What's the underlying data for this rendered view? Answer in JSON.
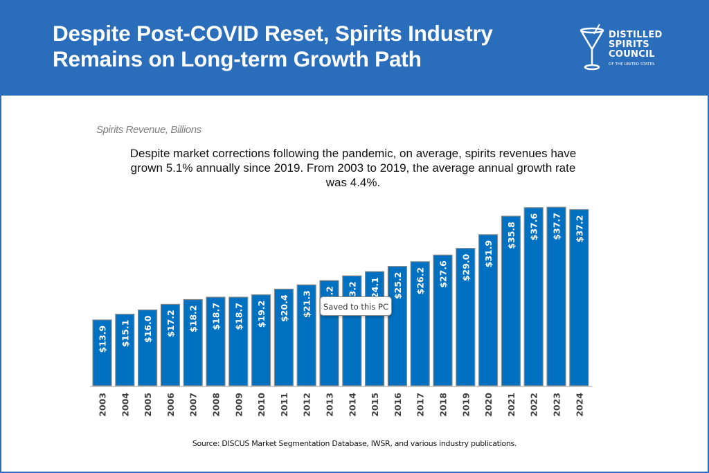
{
  "header": {
    "title_line1": "Despite Post-COVID Reset, Spirits Industry",
    "title_line2": "Remains on Long-term Growth Path",
    "logo": {
      "icon": "martini-glass-icon",
      "line1": "DISTILLED",
      "line2": "SPIRITS",
      "line3": "COUNCIL",
      "line4": "OF THE UNITED STATES"
    }
  },
  "colors": {
    "brand_blue": "#2a6ebb",
    "bar_fill": "#0070c0",
    "bar_border": "#8c8c8c"
  },
  "tooltip": {
    "text": "Saved to this PC"
  },
  "chart_data": {
    "type": "bar",
    "title": "Spirits Revenue, Billions",
    "annotation": "Despite market corrections following the pandemic, on average, spirits revenues have grown 5.1% annually since 2019. From 2003 to 2019, the average annual growth rate was 4.4%.",
    "xlabel": "",
    "ylabel": "",
    "ylim": [
      0,
      40
    ],
    "grid": false,
    "legend": "none",
    "value_prefix": "$",
    "categories": [
      "2003",
      "2004",
      "2005",
      "2006",
      "2007",
      "2008",
      "2009",
      "2010",
      "2011",
      "2012",
      "2013",
      "2014",
      "2015",
      "2016",
      "2017",
      "2018",
      "2019",
      "2020",
      "2021",
      "2022",
      "2023",
      "2024"
    ],
    "values": [
      13.9,
      15.1,
      16.0,
      17.2,
      18.2,
      18.7,
      18.7,
      19.2,
      20.4,
      21.3,
      22.2,
      23.2,
      24.1,
      25.2,
      26.2,
      27.6,
      29.0,
      31.9,
      35.8,
      37.6,
      37.7,
      37.2
    ],
    "data_labels": [
      "$13.9",
      "$15.1",
      "$16.0",
      "$17.2",
      "$18.2",
      "$18.7",
      "$18.7",
      "$19.2",
      "$20.4",
      "$21.3",
      "$22.2",
      "$23.2",
      "$24.1",
      "$25.2",
      "$26.2",
      "$27.6",
      "$29.0",
      "$31.9",
      "$35.8",
      "$37.6",
      "$37.7",
      "$37.2"
    ],
    "source": "Source: DISCUS Market Segmentation Database, IWSR, and various industry publications."
  }
}
